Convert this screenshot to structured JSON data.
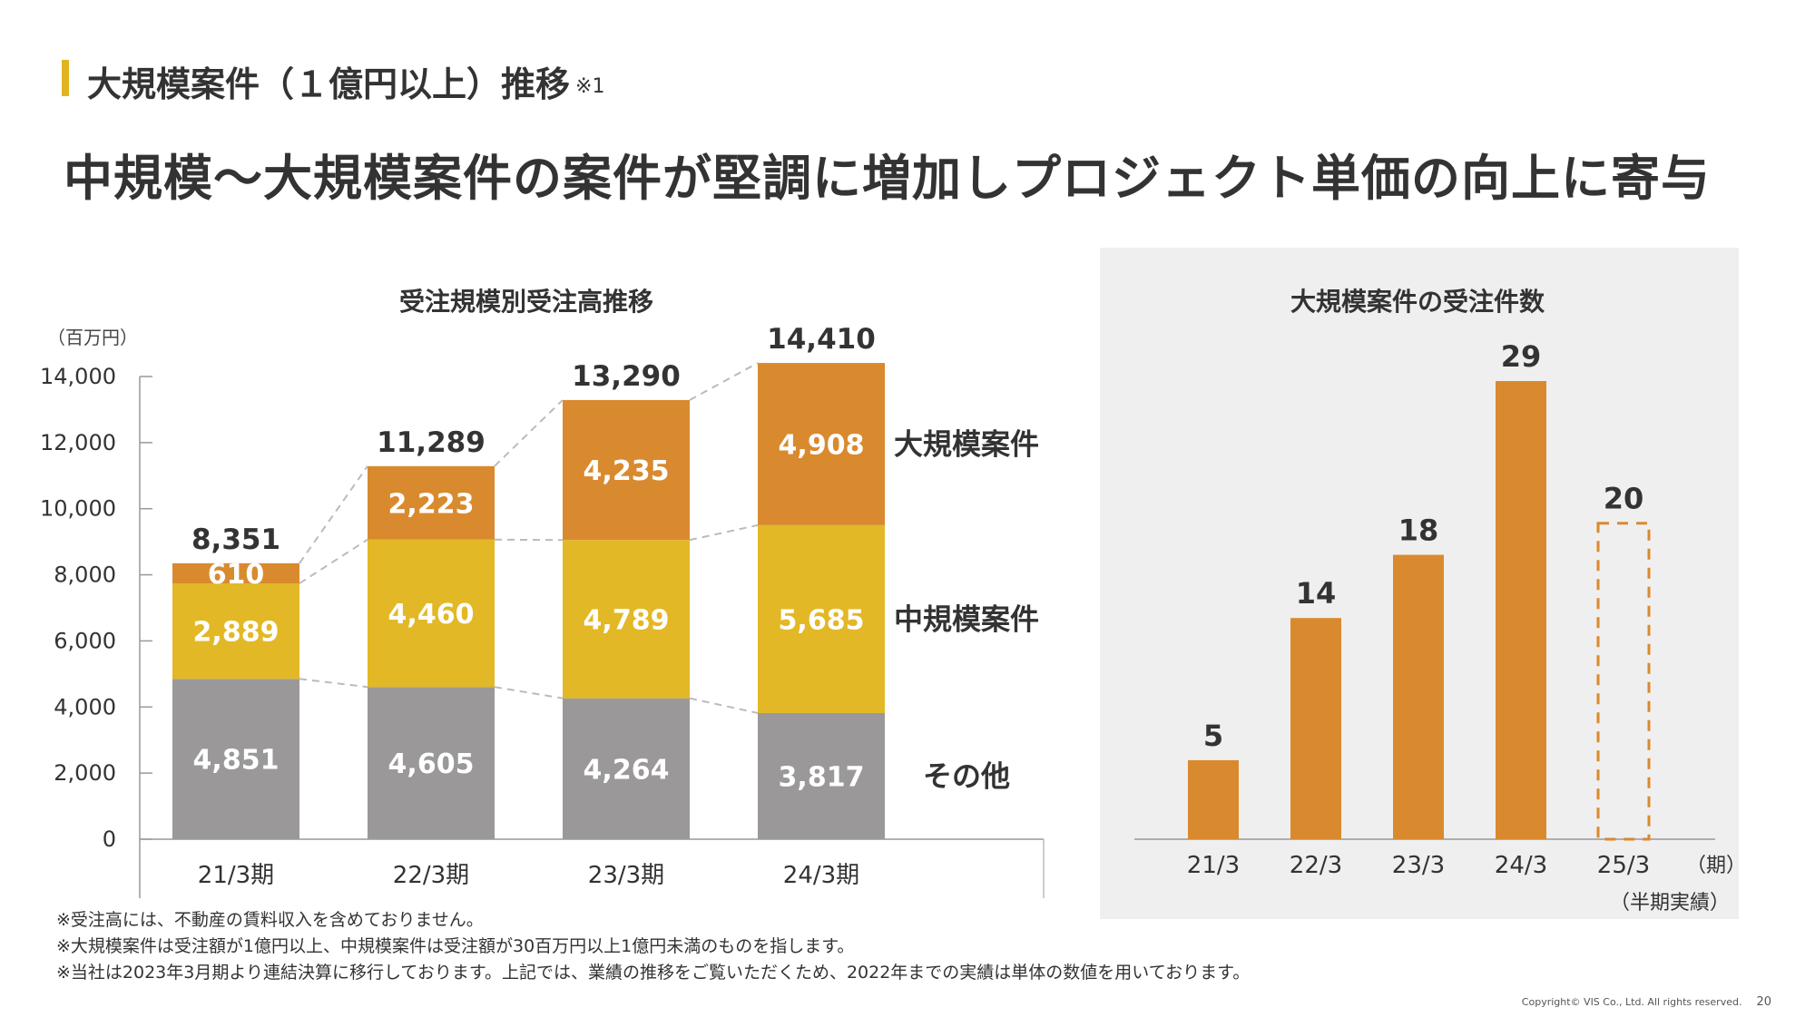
{
  "header": {
    "section_title": "大規模案件（１億円以上）推移",
    "section_note": "※1",
    "headline": "中規模～大規模案件の案件が堅調に増加しプロジェクト単価の向上に寄与"
  },
  "colors": {
    "accent_bar": "#e0b420",
    "large": "#d98a2e",
    "medium": "#e3b826",
    "other": "#9a9898",
    "panel_bg": "#efefef"
  },
  "chart_data": [
    {
      "type": "bar",
      "stacked": true,
      "title": "受注規模別受注高推移",
      "unit_label": "（百万円）",
      "categories": [
        "21/3期",
        "22/3期",
        "23/3期",
        "24/3期"
      ],
      "series": [
        {
          "name": "その他",
          "values": [
            4851,
            4605,
            4264,
            3817
          ],
          "labels": [
            "4,851",
            "4,605",
            "4,264",
            "3,817"
          ]
        },
        {
          "name": "中規模案件",
          "values": [
            2889,
            4460,
            4789,
            5685
          ],
          "labels": [
            "2,889",
            "4,460",
            "4,789",
            "5,685"
          ]
        },
        {
          "name": "大規模案件",
          "values": [
            610,
            2223,
            4235,
            4908
          ],
          "labels": [
            "610",
            "2,223",
            "4,235",
            "4,908"
          ]
        }
      ],
      "totals": [
        8351,
        11289,
        13290,
        14410
      ],
      "total_labels": [
        "8,351",
        "11,289",
        "13,290",
        "14,410"
      ],
      "ylim": [
        0,
        14000
      ],
      "yticks": [
        0,
        2000,
        4000,
        6000,
        8000,
        10000,
        12000,
        14000
      ],
      "ytick_labels": [
        "0",
        "2,000",
        "4,000",
        "6,000",
        "8,000",
        "10,000",
        "12,000",
        "14,000"
      ],
      "legend_position": "right"
    },
    {
      "type": "bar",
      "title": "大規模案件の受注件数",
      "categories": [
        "21/3",
        "22/3",
        "23/3",
        "24/3",
        "25/3"
      ],
      "values": [
        5,
        14,
        18,
        29,
        20
      ],
      "value_labels": [
        "5",
        "14",
        "18",
        "29",
        "20"
      ],
      "dashed_last": true,
      "x_unit": "（期）",
      "last_note": "（半期実績）"
    }
  ],
  "footnotes": [
    "※受注高には、不動産の賃料収入を含めておりません。",
    "※大規模案件は受注額が1億円以上、中規模案件は受注額が30百万円以上1億円未満のものを指します。",
    "※当社は2023年3月期より連結決算に移行しております。上記では、業績の推移をご覧いただくため、2022年までの実績は単体の数値を用いております。"
  ],
  "footer": {
    "copyright": "Copyright© VIS Co., Ltd. All rights reserved.",
    "page_number": "20"
  }
}
